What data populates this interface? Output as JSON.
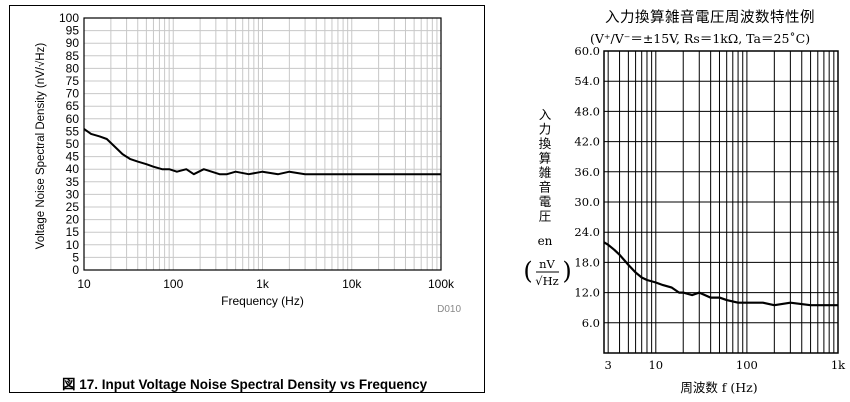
{
  "charts": [
    {
      "type": "line",
      "caption": "図 17. Input Voltage Noise Spectral Density vs Frequency",
      "ylabel": "Voltage Noise Spectral Density (nV/√Hz)",
      "xlabel": "Frequency (Hz)",
      "code": "D010",
      "x_scale": "log",
      "xlim": [
        10,
        100000
      ],
      "ylim": [
        0,
        100
      ],
      "x_ticks": [
        10,
        100,
        1000,
        10000,
        100000
      ],
      "x_tick_labels": [
        "10",
        "100",
        "1k",
        "10k",
        "100k"
      ],
      "y_ticks": [
        0,
        5,
        10,
        15,
        20,
        25,
        30,
        35,
        40,
        45,
        50,
        55,
        60,
        65,
        70,
        75,
        80,
        85,
        90,
        95,
        100
      ],
      "y_tick_labels": [
        "0",
        "5",
        "10",
        "15",
        "20",
        "25",
        "30",
        "35",
        "40",
        "45",
        "50",
        "55",
        "60",
        "65",
        "70",
        "75",
        "80",
        "85",
        "90",
        "95",
        "100"
      ],
      "grid": true,
      "series": [
        {
          "x": [
            10,
            12,
            15,
            18,
            22,
            27,
            33,
            40,
            50,
            60,
            75,
            90,
            110,
            140,
            170,
            220,
            270,
            330,
            400,
            500,
            700,
            1000,
            1500,
            2000,
            3000,
            5000,
            7000,
            10000,
            15000,
            20000,
            30000,
            50000,
            70000,
            100000
          ],
          "y": [
            56,
            54,
            53,
            52,
            49,
            46,
            44,
            43,
            42,
            41,
            40,
            40,
            39,
            40,
            38,
            40,
            39,
            38,
            38,
            39,
            38,
            39,
            38,
            39,
            38,
            38,
            38,
            38,
            38,
            38,
            38,
            38,
            38,
            38
          ]
        }
      ]
    },
    {
      "type": "line",
      "title": "入力換算雑音電圧周波数特性例",
      "subtitle": "(V⁺/V⁻＝±15V,  Rs＝1kΩ,  Ta＝25˚C)",
      "ylabel_chars": [
        "入",
        "力",
        "換",
        "算",
        "雑",
        "音",
        "電",
        "圧"
      ],
      "ylabel_symbol": "en",
      "ylabel_unit_top": "nV",
      "ylabel_unit_bottom": "√Hz",
      "xlabel": "周波数 f  (Hz)",
      "x_scale": "log",
      "xlim": [
        2.7,
        1000
      ],
      "ylim": [
        0,
        60
      ],
      "x_ticks": [
        3,
        10,
        100,
        1000
      ],
      "x_tick_labels": [
        "3",
        "10",
        "100",
        "1k"
      ],
      "y_ticks": [
        6,
        12,
        18,
        24,
        30,
        36,
        42,
        48,
        54,
        60
      ],
      "y_tick_labels": [
        "6.0",
        "12.0",
        "18.0",
        "24.0",
        "30.0",
        "36.0",
        "42.0",
        "48.0",
        "54.0",
        "60.0"
      ],
      "grid": true,
      "series": [
        {
          "x": [
            2.7,
            3,
            3.5,
            4,
            5,
            6,
            7,
            8,
            10,
            12,
            15,
            18,
            20,
            25,
            30,
            40,
            50,
            60,
            80,
            100,
            150,
            200,
            300,
            500,
            700,
            1000
          ],
          "y": [
            22,
            21.5,
            20.5,
            19.5,
            17.5,
            16,
            15,
            14.5,
            14,
            13.5,
            13,
            12,
            12,
            11.5,
            12,
            11,
            11,
            10.5,
            10,
            10,
            10,
            9.5,
            10,
            9.5,
            9.5,
            9.5
          ]
        }
      ]
    }
  ]
}
